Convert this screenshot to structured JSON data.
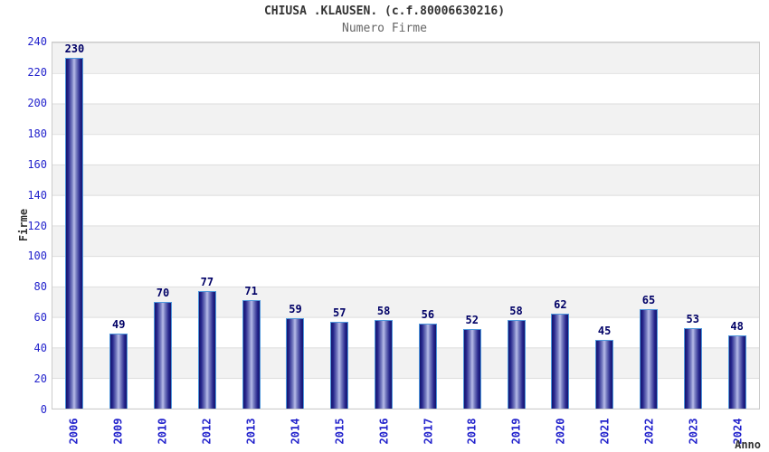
{
  "header": {
    "title": "CHIUSA .KLAUSEN. (c.f.80006630216)",
    "subtitle": "Numero Firme"
  },
  "chart_data": {
    "type": "bar",
    "title": "CHIUSA .KLAUSEN. (c.f.80006630216)",
    "subtitle": "Numero Firme",
    "xlabel": "Anno",
    "ylabel": "Firme",
    "categories": [
      "2006",
      "2009",
      "2010",
      "2012",
      "2013",
      "2014",
      "2015",
      "2016",
      "2017",
      "2018",
      "2019",
      "2020",
      "2021",
      "2022",
      "2023",
      "2024"
    ],
    "values": [
      230,
      49,
      70,
      77,
      71,
      59,
      57,
      58,
      56,
      52,
      58,
      62,
      45,
      65,
      53,
      48
    ],
    "ylim": [
      0,
      240
    ],
    "ytick_step": 20,
    "yticks": [
      0,
      20,
      40,
      60,
      80,
      100,
      120,
      140,
      160,
      180,
      200,
      220,
      240
    ],
    "grid": "horizontal alternating bands every 20 units, top band gray",
    "legend_position": "none",
    "value_labels": "above bars"
  },
  "colors": {
    "tick_label_blue": "#2222cc",
    "value_label_navy": "#000066",
    "bar_edge_dark": "#15156e",
    "bar_center_light": "#b8bce8",
    "bar_outline": "#4f97dc",
    "band_gray": "#f2f2f2",
    "plot_border": "#cccccc",
    "title_text": "#333333",
    "subtitle_text": "#666666"
  }
}
